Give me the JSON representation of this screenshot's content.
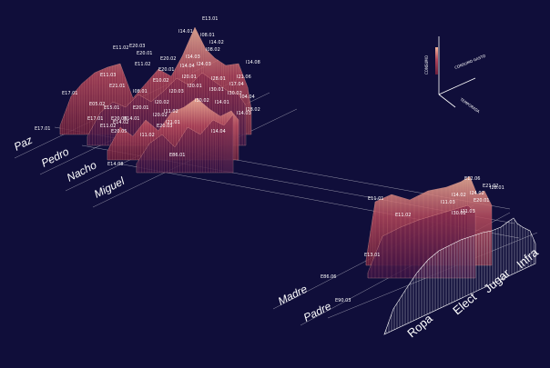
{
  "chart_data": {
    "type": "3d-fence-area",
    "people_top": [
      "Paz",
      "Pedro",
      "Nacho",
      "Miguel"
    ],
    "people_bottom": [
      "Madre",
      "Padre"
    ],
    "categories": [
      "Ropa",
      "Elect",
      "Jugar",
      "Infra"
    ],
    "legend": {
      "axis_labels": [
        "CONSUMO",
        "CONSUMO GASTO",
        "TEMPORADA"
      ]
    },
    "point_labels_top": [
      "E13.01",
      "E11.02",
      "E20.03",
      "E20.01",
      "I08.01",
      "I14.01",
      "I08.02",
      "I14.02",
      "E11.02",
      "E20.02",
      "E20.01",
      "E10.02",
      "I14.03",
      "I14.04",
      "I24.03",
      "I20.01",
      "I20.01",
      "I30.01",
      "I21.06",
      "I20.02",
      "I11.02",
      "I14.01",
      "E11.03",
      "E21.01",
      "I08.01",
      "I20.03",
      "I30.02",
      "E17.01",
      "E15.01",
      "E20.01",
      "E14.01",
      "I14.03",
      "E14.02",
      "I28.02",
      "E11.02",
      "I30.02",
      "I20.02",
      "E20.03",
      "I21.01",
      "E17.01",
      "E05.02",
      "E20.05",
      "I11.02",
      "E20.04",
      "I17.04",
      "I14.08",
      "I28.01",
      "I04.04",
      "E86.01",
      "E14.08",
      "I14.04",
      "E17.01"
    ],
    "point_labels_bottom": [
      "E11.01",
      "E11.02",
      "I11.03",
      "I14.02",
      "E12.06",
      "E20.01",
      "E21.02",
      "I21.03",
      "I24.02",
      "I28.01",
      "I30.02",
      "E13.01",
      "E86.06",
      "E90.03"
    ]
  }
}
